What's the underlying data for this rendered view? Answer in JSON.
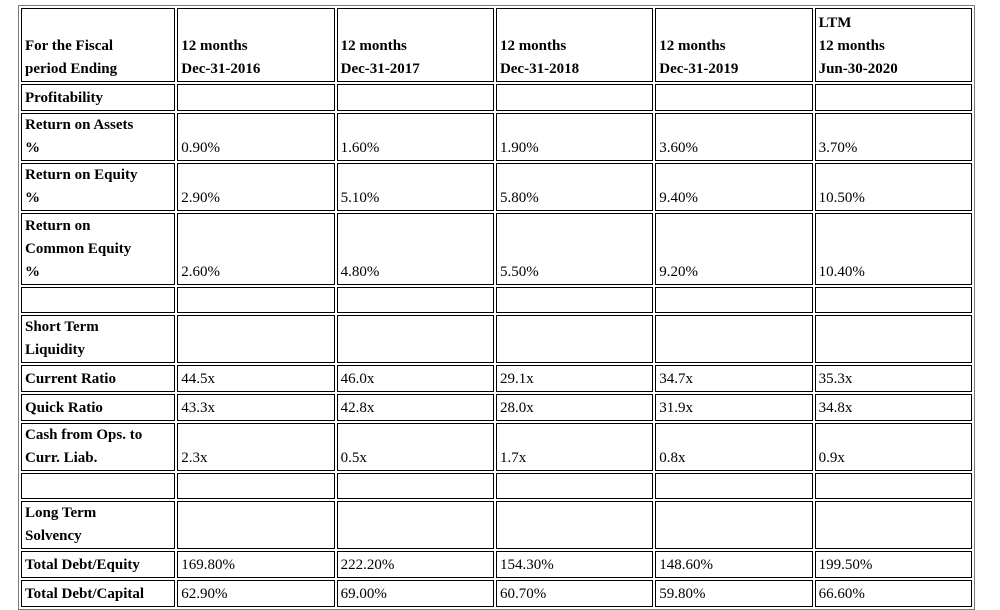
{
  "table": {
    "header": {
      "label_lines": [
        "For the Fiscal",
        "period Ending"
      ],
      "periods": [
        {
          "lines": [
            "12 months",
            "Dec-31-2016"
          ]
        },
        {
          "lines": [
            "12 months",
            "Dec-31-2017"
          ]
        },
        {
          "lines": [
            "12 months",
            "Dec-31-2018"
          ]
        },
        {
          "lines": [
            "12 months",
            "Dec-31-2019"
          ]
        },
        {
          "lines": [
            "LTM",
            "12 months",
            "Jun-30-2020"
          ]
        }
      ]
    },
    "rows": [
      {
        "label_lines": [
          "Profitability"
        ],
        "values": [
          "",
          "",
          "",
          "",
          ""
        ]
      },
      {
        "label_lines": [
          "Return on Assets",
          "%"
        ],
        "values": [
          "0.90%",
          "1.60%",
          "1.90%",
          "3.60%",
          "3.70%"
        ]
      },
      {
        "label_lines": [
          "Return on Equity",
          "%"
        ],
        "values": [
          "2.90%",
          "5.10%",
          "5.80%",
          "9.40%",
          "10.50%"
        ]
      },
      {
        "label_lines": [
          "Return on",
          "Common Equity",
          "%"
        ],
        "values": [
          "2.60%",
          "4.80%",
          "5.50%",
          "9.20%",
          "10.40%"
        ]
      },
      {
        "label_lines": [
          ""
        ],
        "values": [
          "",
          "",
          "",
          "",
          ""
        ]
      },
      {
        "label_lines": [
          "Short Term",
          "Liquidity"
        ],
        "values": [
          "",
          "",
          "",
          "",
          ""
        ]
      },
      {
        "label_lines": [
          "Current Ratio"
        ],
        "values": [
          "44.5x",
          "46.0x",
          "29.1x",
          "34.7x",
          "35.3x"
        ]
      },
      {
        "label_lines": [
          "Quick Ratio"
        ],
        "values": [
          "43.3x",
          "42.8x",
          "28.0x",
          "31.9x",
          "34.8x"
        ]
      },
      {
        "label_lines": [
          "Cash from Ops. to",
          "Curr. Liab."
        ],
        "values": [
          "2.3x",
          "0.5x",
          "1.7x",
          "0.8x",
          "0.9x"
        ]
      },
      {
        "label_lines": [
          ""
        ],
        "values": [
          "",
          "",
          "",
          "",
          ""
        ]
      },
      {
        "label_lines": [
          "Long Term",
          "Solvency"
        ],
        "values": [
          "",
          "",
          "",
          "",
          ""
        ]
      },
      {
        "label_lines": [
          "Total Debt/Equity"
        ],
        "values": [
          "169.80%",
          "222.20%",
          "154.30%",
          "148.60%",
          "199.50%"
        ]
      },
      {
        "label_lines": [
          "Total Debt/Capital"
        ],
        "values": [
          "62.90%",
          "69.00%",
          "60.70%",
          "59.80%",
          "66.60%"
        ]
      }
    ]
  }
}
